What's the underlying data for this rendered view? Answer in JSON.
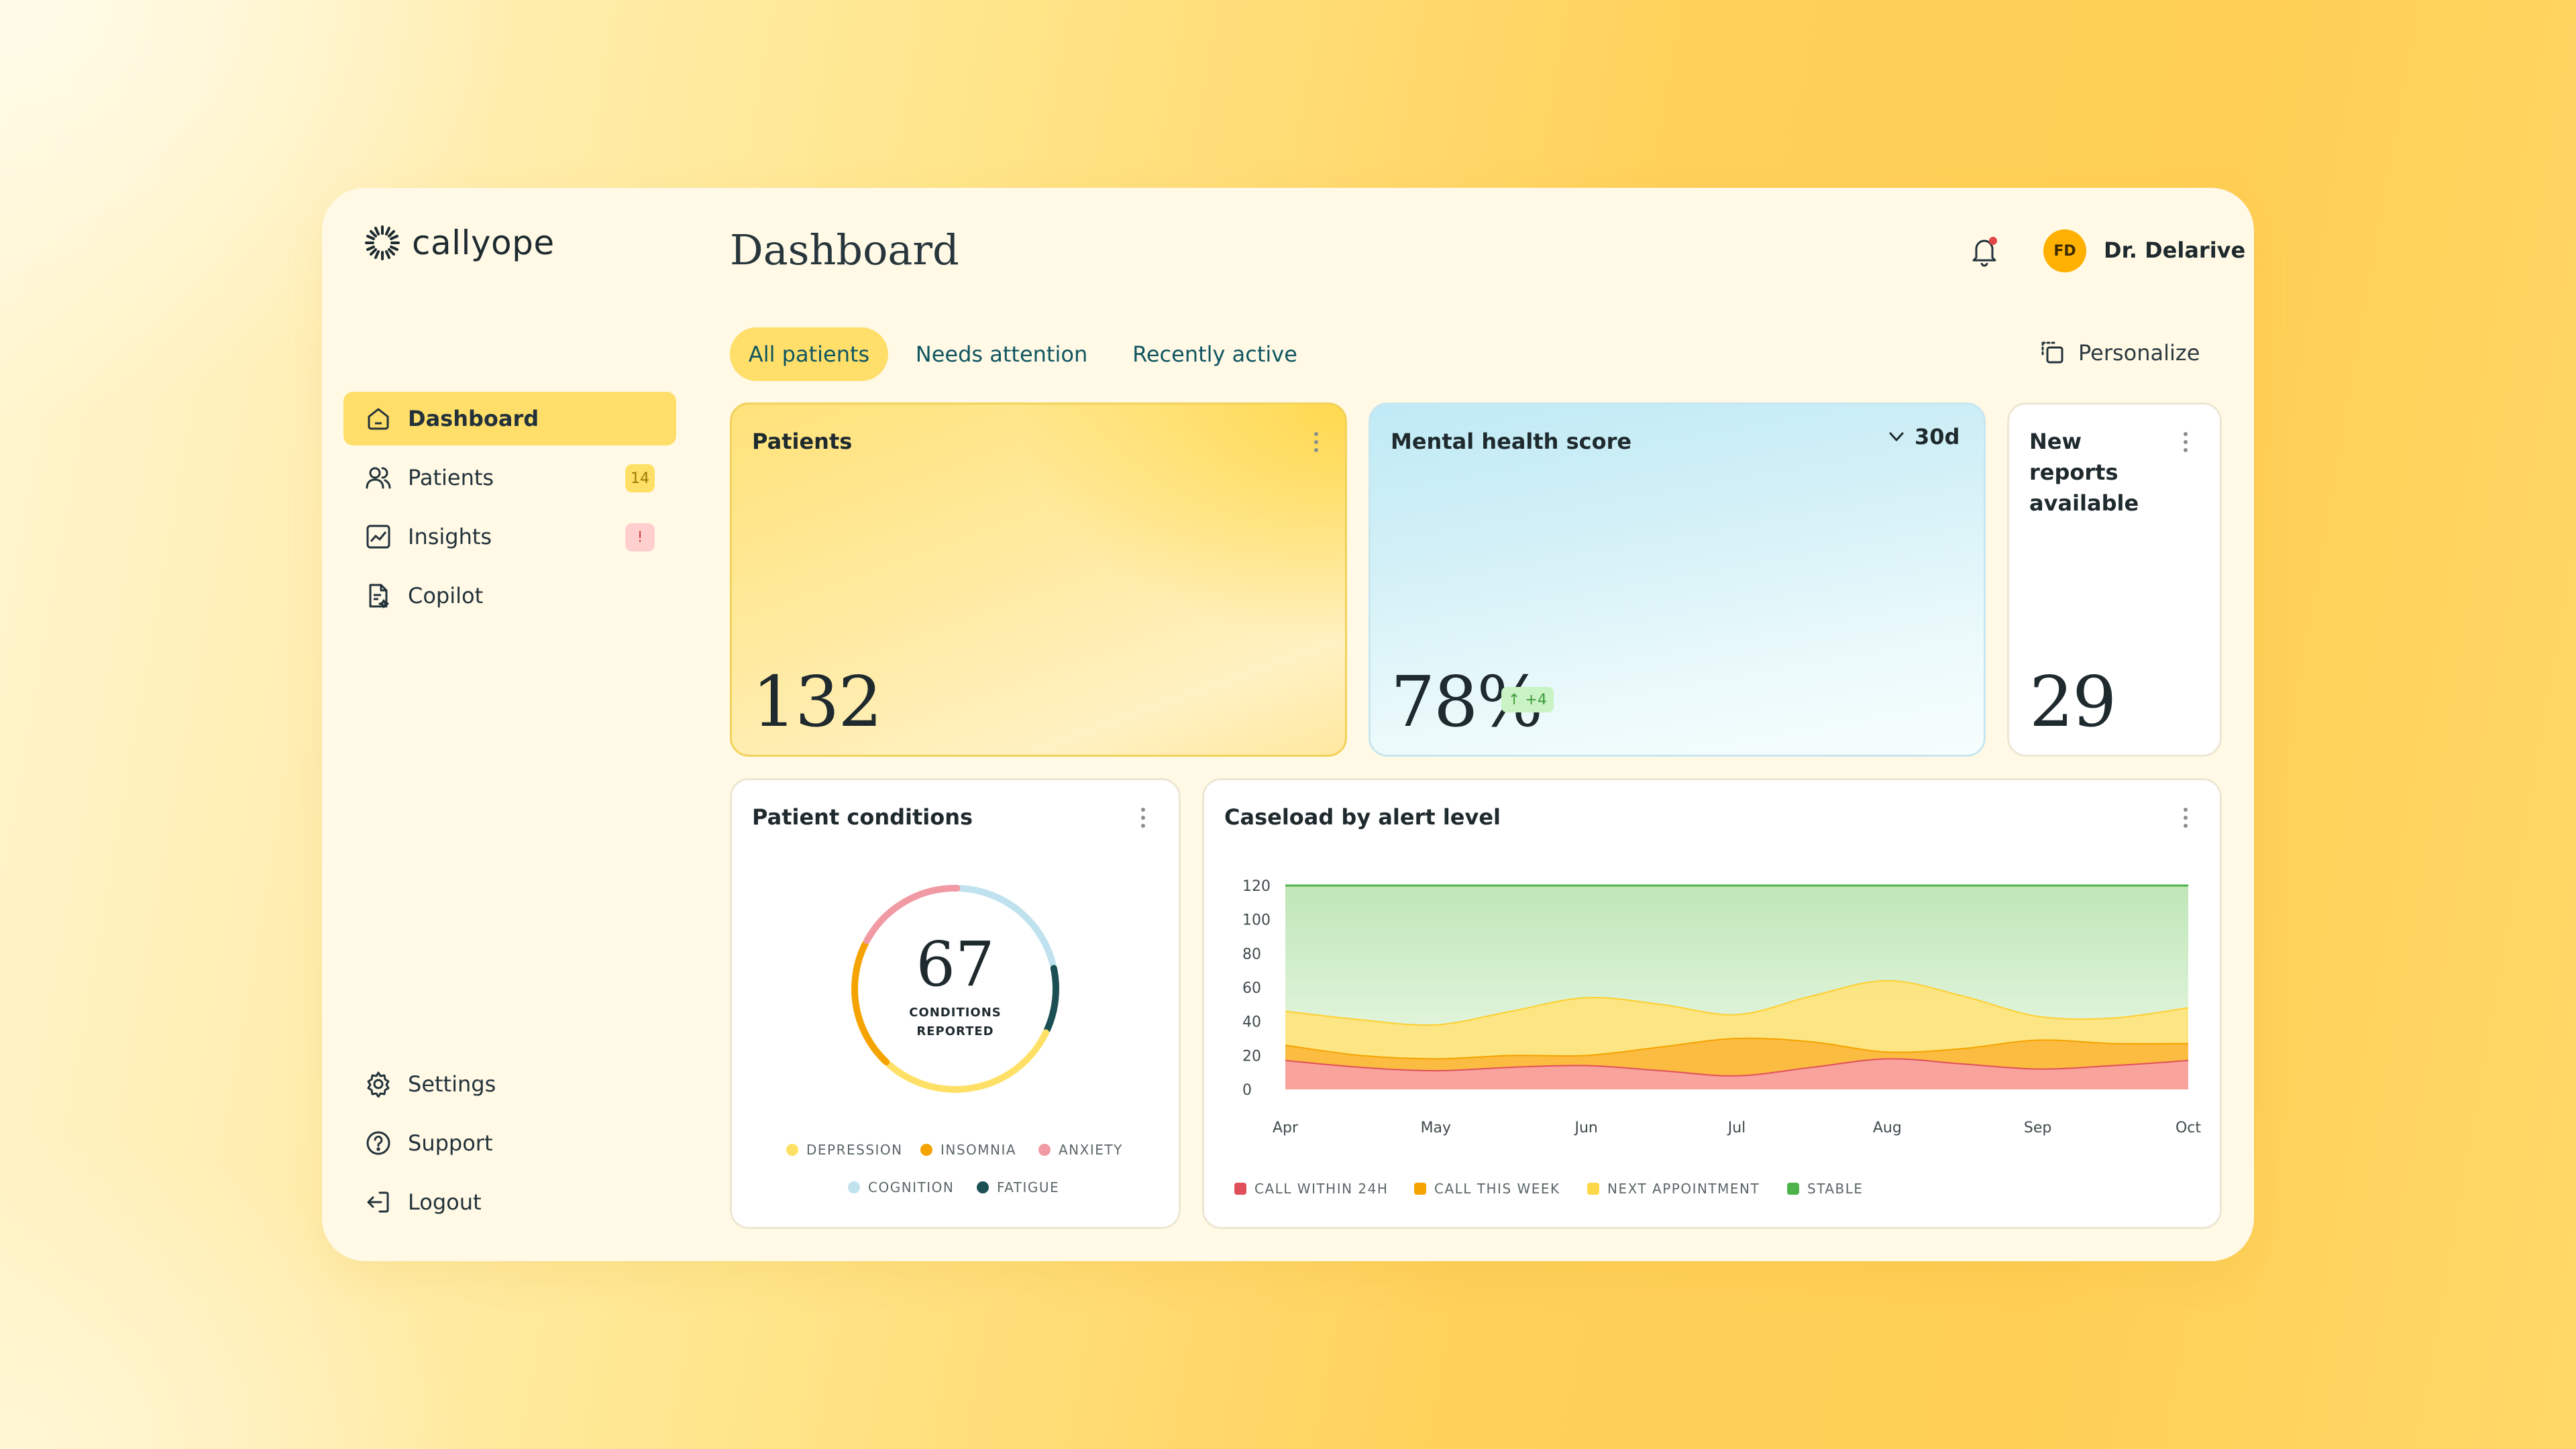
{
  "brand": {
    "name": "callyope"
  },
  "sidebar": {
    "items": [
      {
        "label": "Dashboard",
        "icon": "home-icon",
        "active": true
      },
      {
        "label": "Patients",
        "icon": "users-icon",
        "badge": "14"
      },
      {
        "label": "Insights",
        "icon": "chart-icon",
        "badge": "!"
      },
      {
        "label": "Copilot",
        "icon": "document-icon"
      }
    ],
    "bottom": [
      {
        "label": "Settings",
        "icon": "gear-icon"
      },
      {
        "label": "Support",
        "icon": "help-icon"
      },
      {
        "label": "Logout",
        "icon": "logout-icon"
      }
    ]
  },
  "header": {
    "title": "Dashboard",
    "user": {
      "initials": "FD",
      "name": "Dr. Delarive"
    }
  },
  "tabs": [
    {
      "label": "All patients",
      "active": true
    },
    {
      "label": "Needs attention"
    },
    {
      "label": "Recently active"
    }
  ],
  "personalize_label": "Personalize",
  "cards": {
    "patients": {
      "title": "Patients",
      "value": "132"
    },
    "mental_health": {
      "title": "Mental health score",
      "value": "78%",
      "delta": "↑ +4",
      "period": "30d"
    },
    "reports": {
      "title": "New reports available",
      "value": "29"
    },
    "conditions": {
      "title": "Patient conditions",
      "total": "67",
      "total_label": "CONDITIONS REPORTED"
    },
    "caseload": {
      "title": "Caseload by alert level"
    }
  },
  "chart_data": [
    {
      "type": "pie",
      "title": "Patient conditions",
      "categories": [
        "DEPRESSION",
        "INSOMNIA",
        "ANXIETY",
        "COGNITION",
        "FATIGUE"
      ],
      "values": [
        20,
        14,
        12,
        14,
        7
      ],
      "colors": [
        "#ffe066",
        "#f5a300",
        "#f19aa4",
        "#bfe2ee",
        "#1c4f54"
      ]
    },
    {
      "type": "area",
      "title": "Caseload by alert level",
      "categories": [
        "Apr",
        "May",
        "Jun",
        "Jul",
        "Aug",
        "Sep",
        "Oct"
      ],
      "ylim": [
        0,
        120
      ],
      "yticks": [
        0,
        20,
        40,
        60,
        80,
        100,
        120
      ],
      "x": [
        0,
        0.5,
        1,
        1.5,
        2,
        2.5,
        3,
        3.5,
        4,
        4.5,
        5,
        5.5,
        6
      ],
      "series": [
        {
          "name": "CALL WITHIN 24H",
          "color": "#e0505a",
          "values": [
            17,
            13,
            11,
            13,
            14,
            11,
            8,
            13,
            18,
            15,
            12,
            14,
            17
          ]
        },
        {
          "name": "CALL THIS WEEK",
          "color": "#f5a300",
          "values": [
            26,
            20,
            18,
            20,
            20,
            25,
            30,
            28,
            22,
            24,
            29,
            27,
            27
          ]
        },
        {
          "name": "NEXT APPOINTMENT",
          "color": "#ffd84a",
          "values": [
            46,
            41,
            38,
            46,
            54,
            50,
            44,
            55,
            64,
            55,
            43,
            42,
            48
          ]
        },
        {
          "name": "STABLE",
          "color": "#4db34a",
          "values": [
            120,
            120,
            120,
            120,
            120,
            120,
            120,
            120,
            120,
            120,
            120,
            120,
            120
          ]
        }
      ]
    }
  ]
}
